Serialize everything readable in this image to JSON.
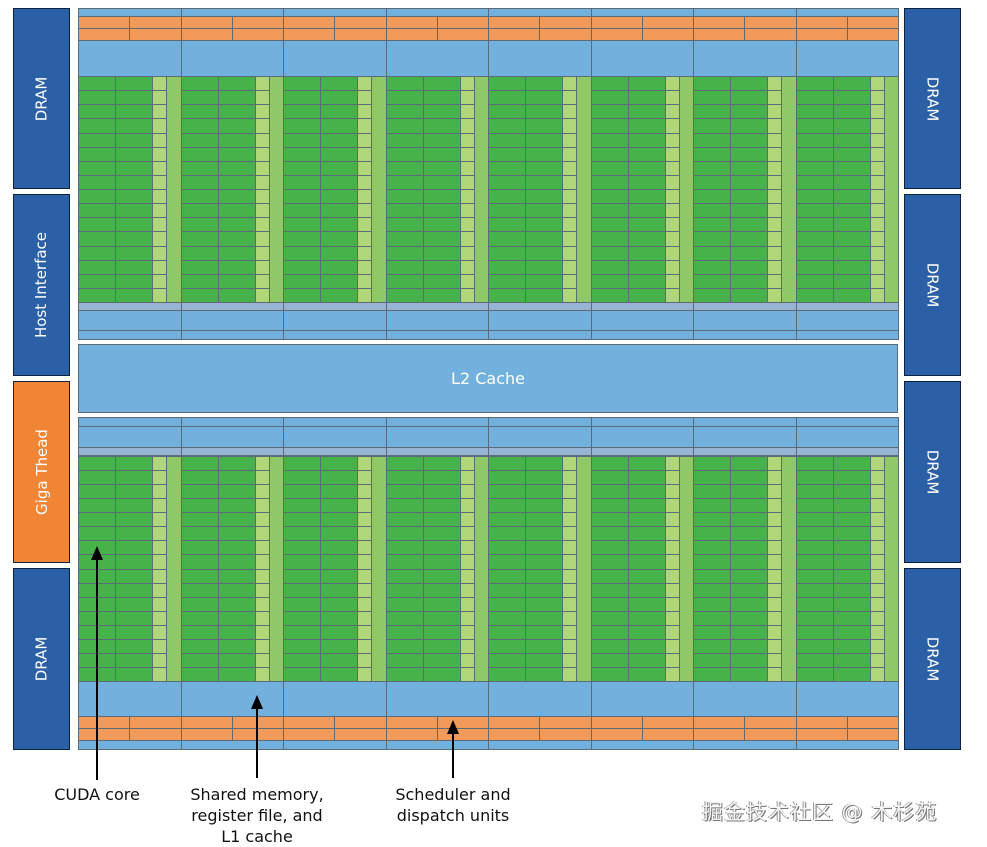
{
  "left_blocks": [
    {
      "label": "DRAM",
      "color": "#2b5fa6"
    },
    {
      "label": "Host Interface",
      "color": "#2b5fa6"
    },
    {
      "label": "Giga Thead",
      "color": "#ef8535"
    },
    {
      "label": "DRAM",
      "color": "#2b5fa6"
    }
  ],
  "right_blocks": [
    {
      "label": "DRAM"
    },
    {
      "label": "DRAM"
    },
    {
      "label": "DRAM"
    },
    {
      "label": "DRAM"
    }
  ],
  "l2_cache": "L2 Cache",
  "annotations": {
    "cuda_core": "CUDA core",
    "shared_memory": "Shared memory, register file, and L1 cache",
    "scheduler": "Scheduler and dispatch units"
  },
  "watermark": "掘金技术社区 @ 木杉苑",
  "colors": {
    "core": "#46b34a",
    "memory": "#72b1de",
    "scheduler": "#f29a5a",
    "dram": "#2b5fa6",
    "giga_thread": "#ef8535"
  }
}
